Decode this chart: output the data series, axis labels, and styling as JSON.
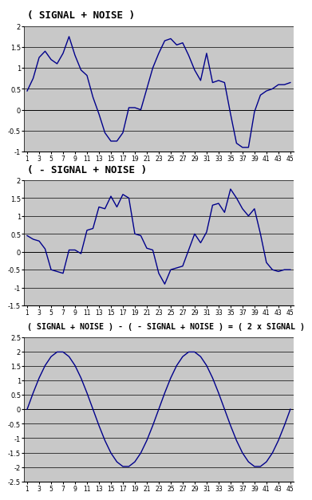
{
  "title1": "( SIGNAL + NOISE )",
  "title2": "( - SIGNAL + NOISE )",
  "title3": "( SIGNAL + NOISE ) - ( - SIGNAL + NOISE ) = ( 2 x SIGNAL )",
  "bg_color": "#c8c8c8",
  "line_color": "#00008b",
  "text_color": "#000000",
  "xlim": [
    1,
    45
  ],
  "xticks": [
    1,
    3,
    5,
    7,
    9,
    11,
    13,
    15,
    17,
    19,
    21,
    23,
    25,
    27,
    29,
    31,
    33,
    35,
    37,
    39,
    41,
    43,
    45
  ],
  "ylim1": [
    -1.0,
    2.0
  ],
  "yticks1": [
    -1.0,
    -0.5,
    0.0,
    0.5,
    1.0,
    1.5,
    2.0
  ],
  "ylim2": [
    -1.5,
    2.0
  ],
  "yticks2": [
    -1.5,
    -1.0,
    -0.5,
    0.0,
    0.5,
    1.0,
    1.5,
    2.0
  ],
  "ylim3": [
    -2.5,
    2.5
  ],
  "yticks3": [
    -2.5,
    -2.0,
    -1.5,
    -1.0,
    -0.5,
    0.0,
    0.5,
    1.0,
    1.5,
    2.0,
    2.5
  ],
  "ch1": [
    0.45,
    0.75,
    1.25,
    1.4,
    1.2,
    1.1,
    1.35,
    1.75,
    1.3,
    0.95,
    0.82,
    0.3,
    -0.1,
    -0.55,
    -0.75,
    -0.75,
    -0.55,
    0.05,
    0.05,
    0.0,
    0.5,
    1.0,
    1.35,
    1.65,
    1.7,
    1.55,
    1.6,
    1.3,
    0.95,
    0.7,
    1.35,
    0.65,
    0.7,
    0.65,
    -0.1,
    -0.8,
    -0.9,
    -0.9,
    -0.05,
    0.35,
    0.45,
    0.5,
    0.6,
    0.6,
    0.65
  ],
  "ch2": [
    0.45,
    0.35,
    0.3,
    0.08,
    -0.5,
    -0.55,
    -0.6,
    0.05,
    0.05,
    -0.05,
    0.6,
    0.65,
    1.25,
    1.2,
    1.55,
    1.25,
    1.6,
    1.5,
    0.5,
    0.45,
    0.1,
    0.05,
    -0.6,
    -0.9,
    -0.5,
    -0.45,
    -0.4,
    0.05,
    0.5,
    0.25,
    0.55,
    1.3,
    1.35,
    1.1,
    1.75,
    1.5,
    1.2,
    1.0,
    1.2,
    0.5,
    -0.3,
    -0.5,
    -0.55,
    -0.5,
    -0.5
  ],
  "signal_period": 22.0,
  "signal_amplitude": 1.0
}
